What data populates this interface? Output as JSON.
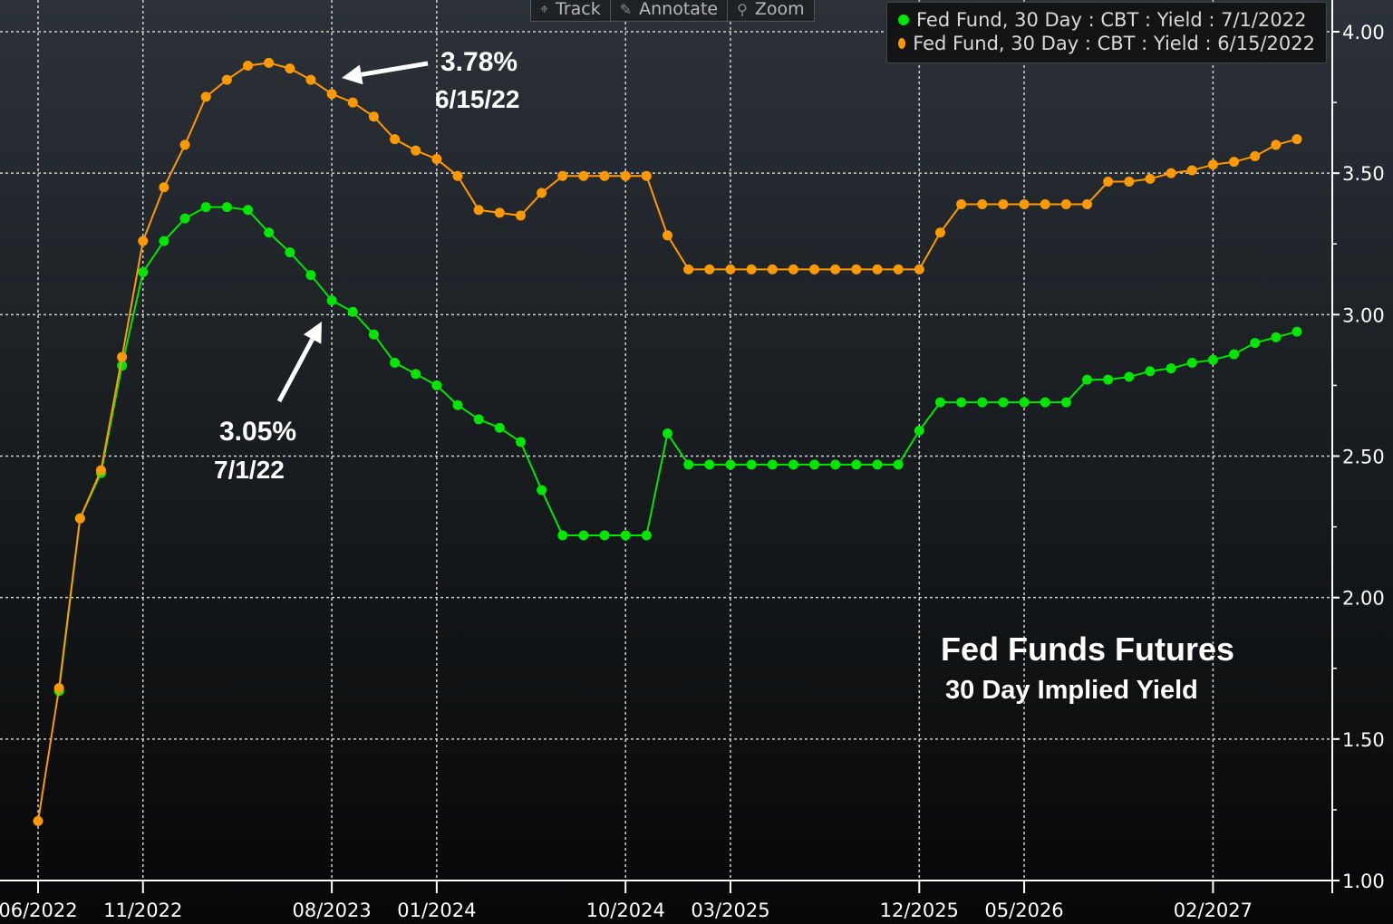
{
  "toolbar": {
    "buttons": [
      {
        "label": "Track",
        "icon": "crosshair-icon"
      },
      {
        "label": "Annotate",
        "icon": "pencil-icon"
      },
      {
        "label": "Zoom",
        "icon": "magnifier-icon"
      }
    ]
  },
  "colors": {
    "series_green": "#00e600",
    "series_orange": "#ff9900",
    "grid": "#d0d0d0",
    "axis": "#ffffff"
  },
  "annotations": {
    "orange_value": "3.78%",
    "orange_date": "6/15/22",
    "green_value": "3.05%",
    "green_date": "7/1/22"
  },
  "chart_data": {
    "type": "line",
    "title": "Fed Funds Futures",
    "subtitle": "30 Day Implied Yield",
    "legend_position": "top-right",
    "grid": true,
    "ylim": [
      1.0,
      4.0
    ],
    "y_ticks": [
      "1.00",
      "1.50",
      "2.00",
      "2.50",
      "3.00",
      "3.50",
      "4.00"
    ],
    "x_ticks": [
      {
        "label": "06/2022",
        "index": 0
      },
      {
        "label": "11/2022",
        "index": 5
      },
      {
        "label": "08/2023",
        "index": 14
      },
      {
        "label": "01/2024",
        "index": 19
      },
      {
        "label": "10/2024",
        "index": 28
      },
      {
        "label": "03/2025",
        "index": 33
      },
      {
        "label": "12/2025",
        "index": 42
      },
      {
        "label": "05/2026",
        "index": 47
      },
      {
        "label": "02/2027",
        "index": 56
      }
    ],
    "series": [
      {
        "name": "Fed Fund, 30 Day : CBT : Yield : 7/1/2022",
        "color": "#00e600",
        "start_index": 1,
        "values": [
          1.67,
          2.28,
          2.44,
          2.82,
          3.15,
          3.26,
          3.34,
          3.38,
          3.38,
          3.37,
          3.29,
          3.22,
          3.14,
          3.05,
          3.01,
          2.93,
          2.83,
          2.79,
          2.75,
          2.68,
          2.63,
          2.6,
          2.55,
          2.38,
          2.22,
          2.22,
          2.22,
          2.22,
          2.22,
          2.58,
          2.47,
          2.47,
          2.47,
          2.47,
          2.47,
          2.47,
          2.47,
          2.47,
          2.47,
          2.47,
          2.47,
          2.59,
          2.69,
          2.69,
          2.69,
          2.69,
          2.69,
          2.69,
          2.69,
          2.77,
          2.77,
          2.78,
          2.8,
          2.81,
          2.83,
          2.84,
          2.86,
          2.9,
          2.92,
          2.94
        ]
      },
      {
        "name": "Fed Fund, 30 Day : CBT : Yield : 6/15/2022",
        "color": "#ff9900",
        "start_index": 0,
        "values": [
          1.21,
          1.68,
          2.28,
          2.45,
          2.85,
          3.26,
          3.45,
          3.6,
          3.77,
          3.83,
          3.88,
          3.89,
          3.87,
          3.83,
          3.78,
          3.75,
          3.7,
          3.62,
          3.58,
          3.55,
          3.49,
          3.37,
          3.36,
          3.35,
          3.43,
          3.49,
          3.49,
          3.49,
          3.49,
          3.49,
          3.28,
          3.16,
          3.16,
          3.16,
          3.16,
          3.16,
          3.16,
          3.16,
          3.16,
          3.16,
          3.16,
          3.16,
          3.16,
          3.29,
          3.39,
          3.39,
          3.39,
          3.39,
          3.39,
          3.39,
          3.39,
          3.47,
          3.47,
          3.48,
          3.5,
          3.51,
          3.53,
          3.54,
          3.56,
          3.6,
          3.62
        ]
      }
    ]
  }
}
